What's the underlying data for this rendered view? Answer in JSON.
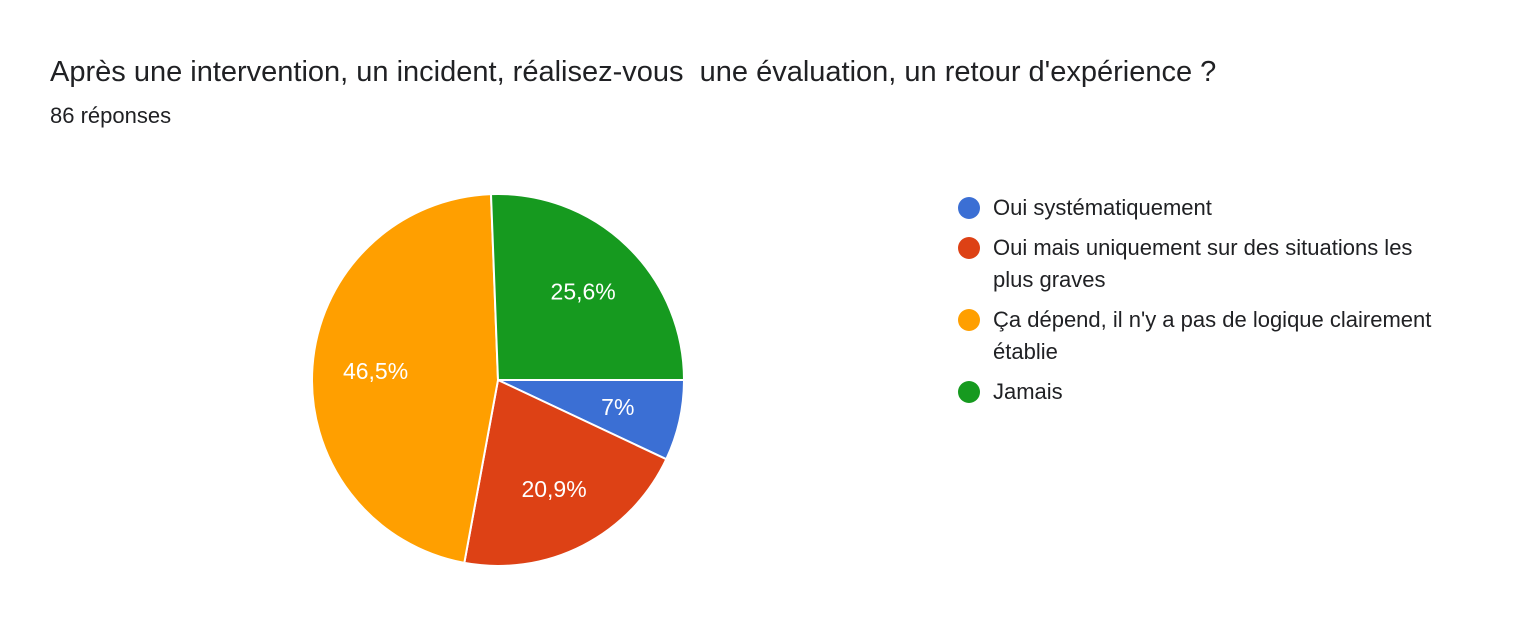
{
  "header": {
    "title": "Après une intervention, un incident, réalisez-vous  une évaluation, un retour d'expérience ?",
    "response_count": "86 réponses"
  },
  "chart_data": {
    "type": "pie",
    "title": "Après une intervention, un incident, réalisez-vous  une évaluation, un retour d'expérience ?",
    "subtitle": "86 réponses",
    "legend_position": "right",
    "slices": [
      {
        "label": "Oui systématiquement",
        "value": 7.0,
        "display": "7%",
        "color": "#3b6fd4"
      },
      {
        "label": "Oui mais uniquement sur des situations les plus graves",
        "value": 20.9,
        "display": "20,9%",
        "color": "#dd4115"
      },
      {
        "label": "Ça dépend, il n'y a pas de logique clairement établie",
        "value": 46.5,
        "display": "46,5%",
        "color": "#ff9f00"
      },
      {
        "label": "Jamais",
        "value": 25.6,
        "display": "25,6%",
        "color": "#169a1f"
      }
    ]
  }
}
